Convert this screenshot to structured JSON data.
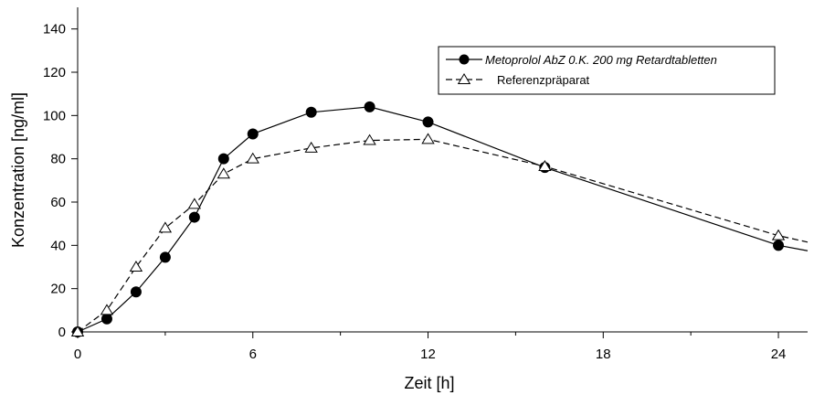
{
  "chart_data": {
    "type": "line",
    "xlabel": "Zeit [h]",
    "ylabel": "Konzentration [ng/ml]",
    "xlim": [
      -0.2,
      25
    ],
    "ylim": [
      0,
      150
    ],
    "x_ticks": [
      0,
      6,
      12,
      18,
      24
    ],
    "x_minor_ticks": [
      3,
      9,
      15,
      21
    ],
    "y_ticks": [
      0,
      20,
      40,
      60,
      80,
      100,
      120,
      140
    ],
    "grid": false,
    "legend_position": "top-right",
    "series": [
      {
        "name": "Metoprolol AbZ 0.K. 200 mg Retardtabletten",
        "line_style": "solid",
        "marker": "filled-circle",
        "color": "#000000",
        "x": [
          0,
          1,
          2,
          3,
          4,
          5,
          6,
          8,
          10,
          12,
          16,
          24,
          25
        ],
        "y": [
          0,
          6,
          18.5,
          34.5,
          53,
          80,
          91.5,
          101.5,
          104,
          97,
          76,
          40,
          37.5
        ],
        "marker_count": 12
      },
      {
        "name": "Referenzpräparat",
        "line_style": "dashed",
        "marker": "open-triangle",
        "color": "#000000",
        "x": [
          0,
          1,
          2,
          3,
          4,
          5,
          6,
          8,
          10,
          12,
          16,
          24,
          25
        ],
        "y": [
          0,
          10,
          30,
          48,
          59,
          73,
          80,
          85,
          88.5,
          89,
          76.5,
          44.5,
          41.5
        ],
        "marker_count": 12
      }
    ]
  }
}
